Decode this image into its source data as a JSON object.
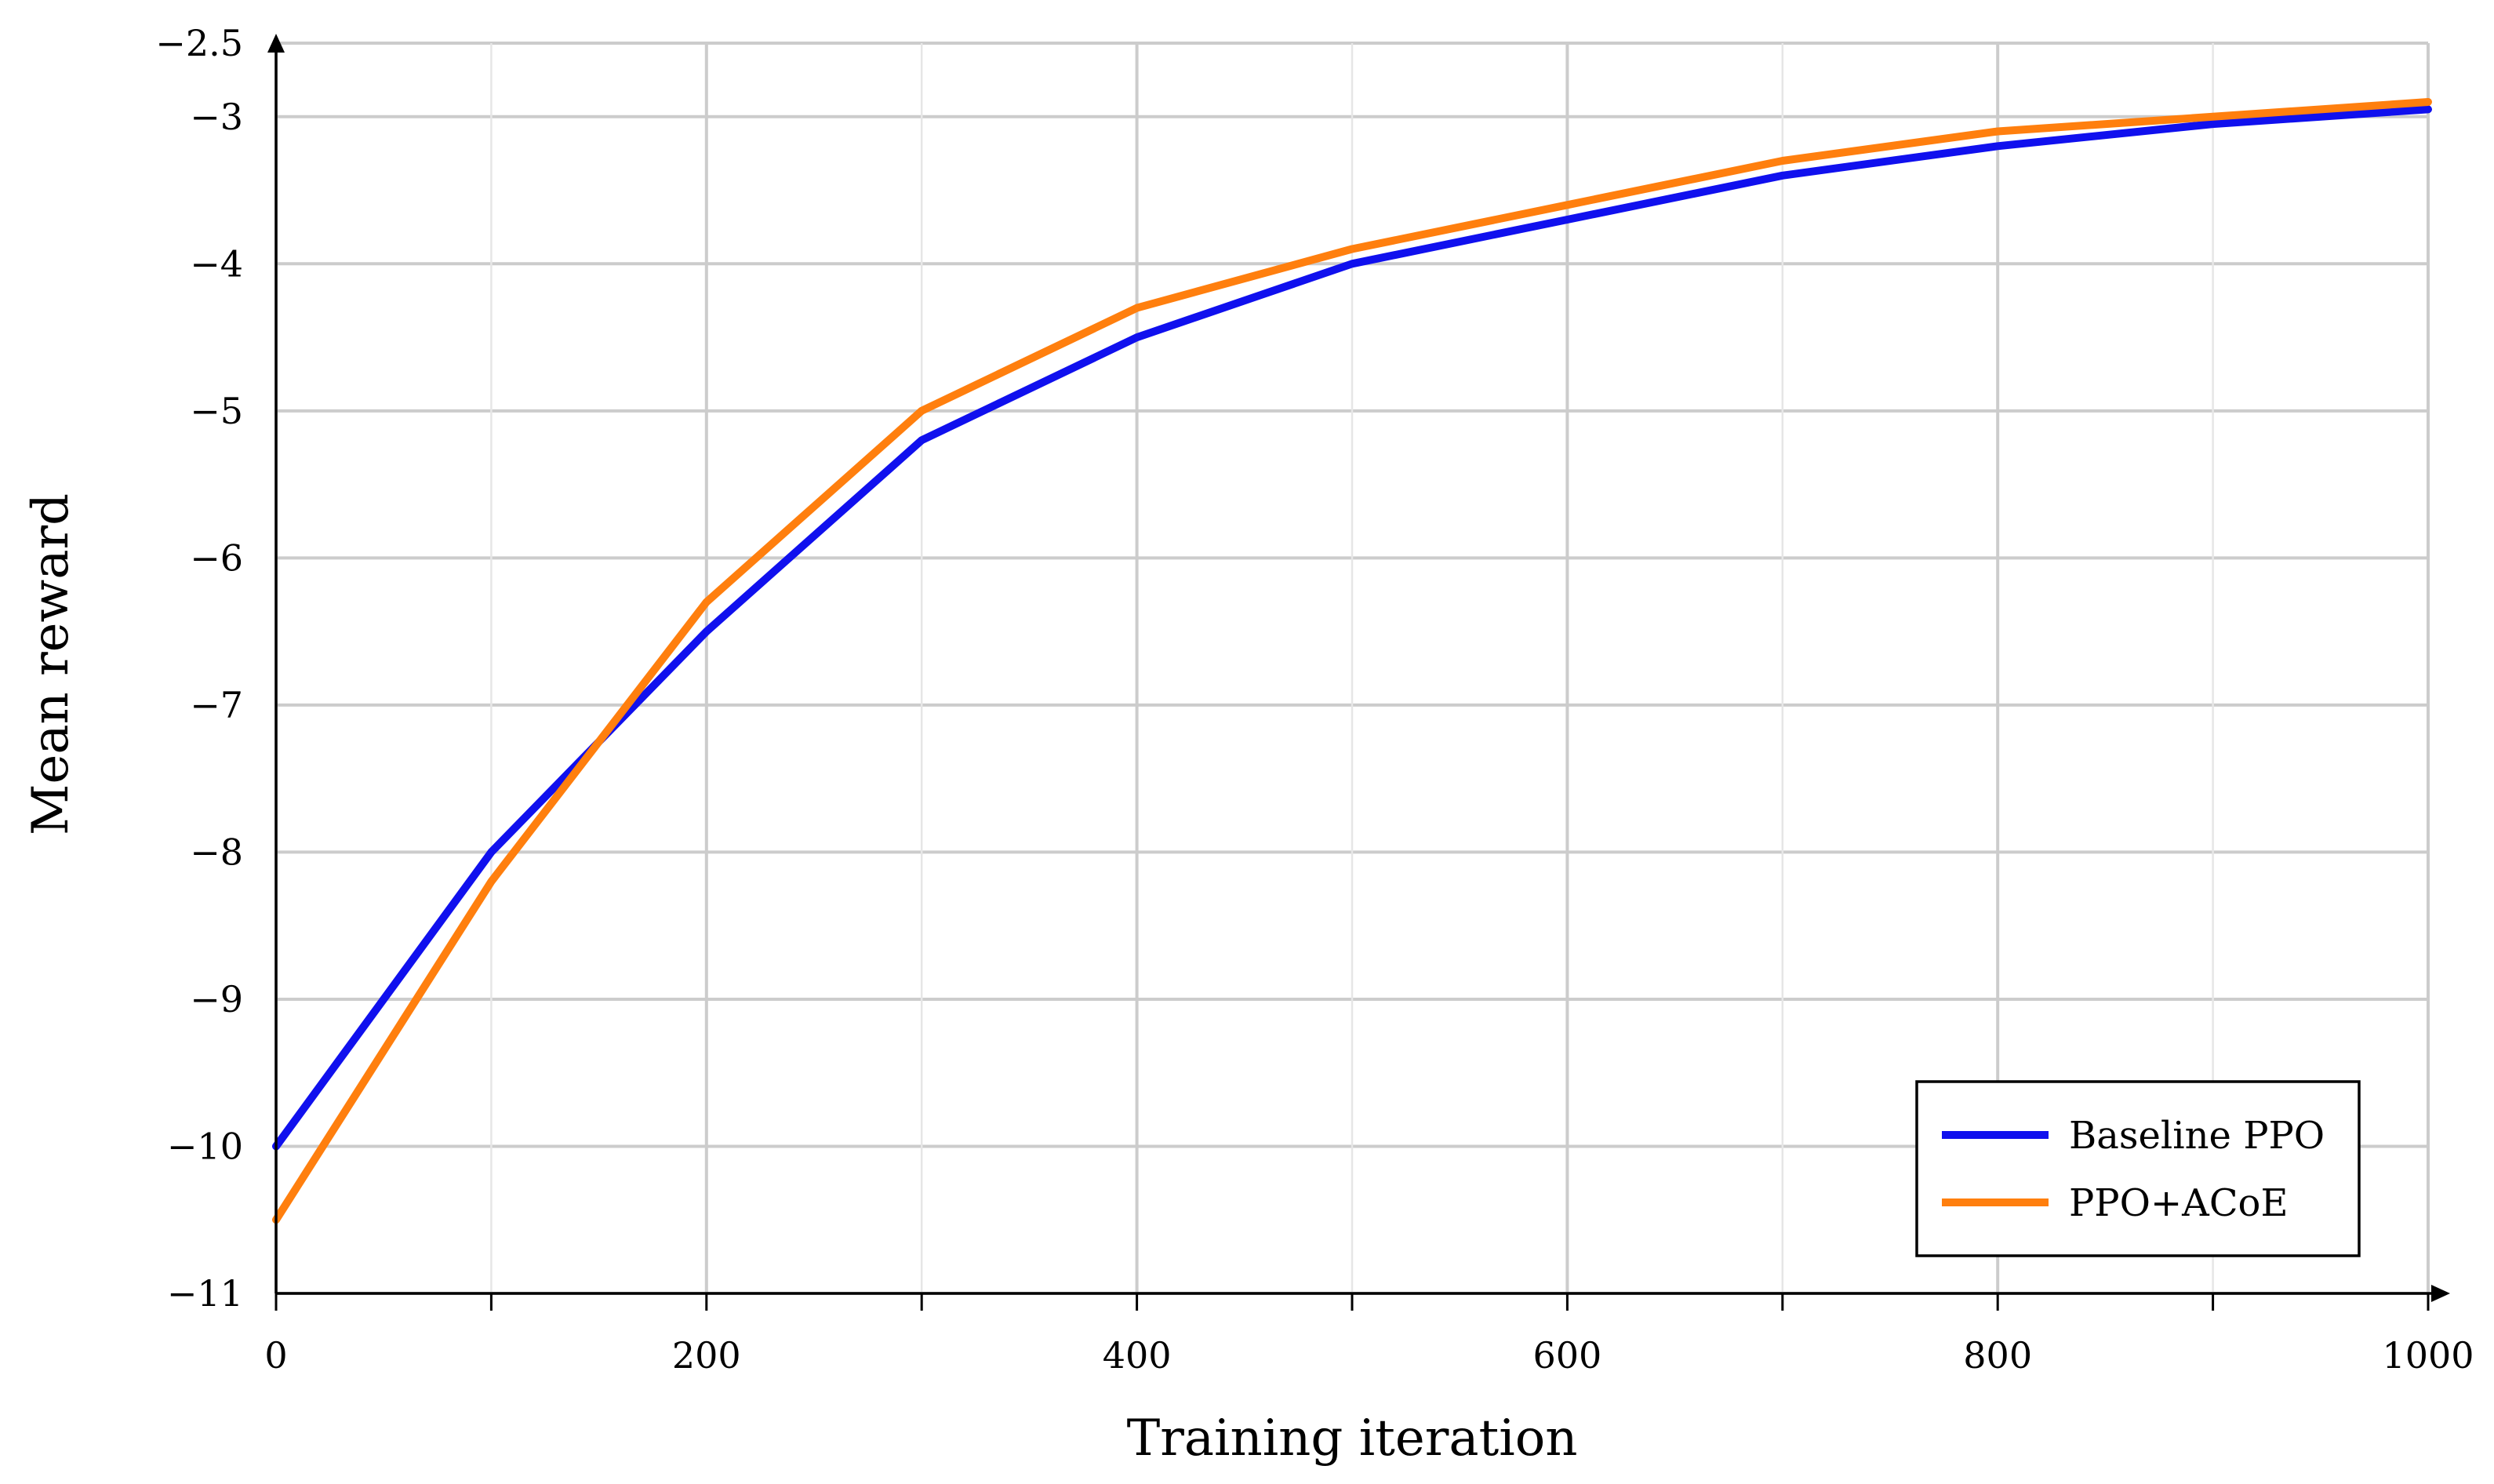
{
  "chart_data": {
    "type": "line",
    "xlabel": "Training iteration",
    "ylabel": "Mean reward",
    "xlim": [
      0,
      1000
    ],
    "ylim": [
      -11,
      -2.5
    ],
    "x_ticks": [
      0,
      200,
      400,
      600,
      800,
      1000
    ],
    "x_tick_labels": [
      "0",
      "200",
      "400",
      "600",
      "800",
      "1000"
    ],
    "x_minor_ticks": [
      100,
      300,
      500,
      700,
      900
    ],
    "y_ticks": [
      -11,
      -10,
      -9,
      -8,
      -7,
      -6,
      -5,
      -4,
      -3,
      -2.5
    ],
    "y_tick_labels": [
      "−11",
      "−10",
      "−9",
      "−8",
      "−7",
      "−6",
      "−5",
      "−4",
      "−3",
      "−2.5"
    ],
    "grid": true,
    "legend_position": "bottom-right",
    "x": [
      0,
      100,
      200,
      300,
      400,
      500,
      600,
      700,
      800,
      900,
      1000
    ],
    "series": [
      {
        "name": "Baseline PPO",
        "color": "#1010ee",
        "values": [
          -10,
          -8,
          -6.5,
          -5.2,
          -4.5,
          -4,
          -3.7,
          -3.4,
          -3.2,
          -3.05,
          -2.95
        ]
      },
      {
        "name": "PPO+ACoE",
        "color": "#ff7f0e",
        "values": [
          -10.5,
          -8.2,
          -6.3,
          -5,
          -4.3,
          -3.9,
          -3.6,
          -3.3,
          -3.1,
          -3,
          -2.9
        ]
      }
    ]
  }
}
